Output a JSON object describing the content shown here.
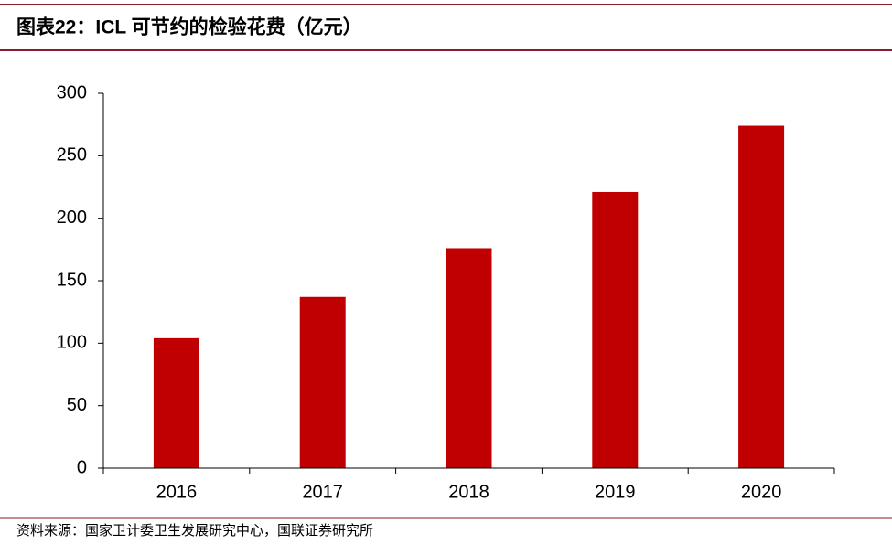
{
  "chart_data": {
    "type": "bar",
    "title": "图表22：ICL 可节约的检验花费（亿元）",
    "categories": [
      "2016",
      "2017",
      "2018",
      "2019",
      "2020"
    ],
    "values": [
      104,
      137,
      176,
      221,
      274
    ],
    "color": "#c00000",
    "ylim": [
      0,
      300
    ],
    "yticks": [
      0,
      50,
      100,
      150,
      200,
      250,
      300
    ],
    "grid": false,
    "source": "资料来源：国家卫计委卫生发展研究中心，国联证券研究所"
  }
}
